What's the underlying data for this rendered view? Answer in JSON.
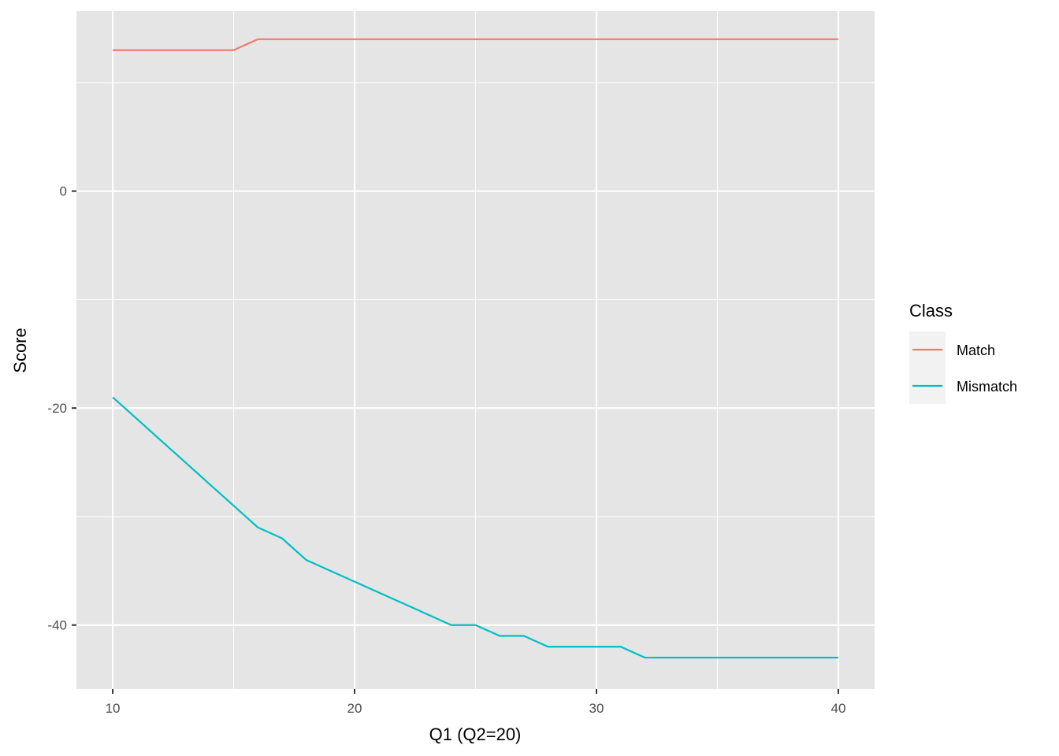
{
  "chart_data": {
    "type": "line",
    "xlabel": "Q1 (Q2=20)",
    "ylabel": "Score",
    "xlim": [
      8.5,
      41.5
    ],
    "ylim": [
      -45.9,
      16.6
    ],
    "x_ticks": [
      10,
      20,
      30,
      40
    ],
    "x_minor": [
      15,
      25,
      35
    ],
    "y_ticks": [
      0,
      -20,
      -40
    ],
    "y_minor": [
      10,
      -10,
      -30
    ],
    "grid": true,
    "legend": {
      "title": "Class",
      "position": "right"
    },
    "x": [
      10,
      11,
      12,
      13,
      14,
      15,
      16,
      17,
      18,
      19,
      20,
      21,
      22,
      23,
      24,
      25,
      26,
      27,
      28,
      29,
      30,
      31,
      32,
      33,
      34,
      35,
      36,
      37,
      38,
      39,
      40
    ],
    "series": [
      {
        "name": "Match",
        "color": "#F8766D",
        "values": [
          13,
          13,
          13,
          13,
          13,
          13,
          14,
          14,
          14,
          14,
          14,
          14,
          14,
          14,
          14,
          14,
          14,
          14,
          14,
          14,
          14,
          14,
          14,
          14,
          14,
          14,
          14,
          14,
          14,
          14,
          14
        ]
      },
      {
        "name": "Mismatch",
        "color": "#00BFC4",
        "values": [
          -19,
          -21,
          -23,
          -25,
          -27,
          -29,
          -31,
          -32,
          -34,
          -35,
          -36,
          -37,
          -38,
          -39,
          -40,
          -40,
          -41,
          -41,
          -42,
          -42,
          -42,
          -42,
          -43,
          -43,
          -43,
          -43,
          -43,
          -43,
          -43,
          -43,
          -43
        ]
      }
    ]
  }
}
